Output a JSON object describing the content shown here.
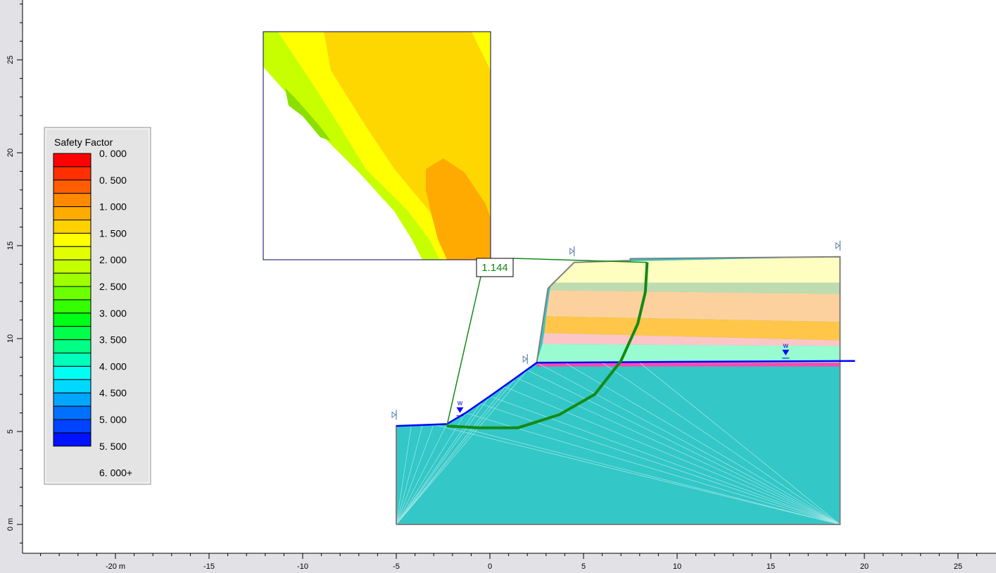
{
  "legend": {
    "title": "Safety Factor",
    "colors": [
      "#ff0000",
      "#ff3000",
      "#ff5e00",
      "#ff8a00",
      "#ffab00",
      "#ffd100",
      "#ffff00",
      "#e2ff00",
      "#c4ff00",
      "#9eff00",
      "#6cff00",
      "#34ff00",
      "#00ff16",
      "#00ff4a",
      "#00ff82",
      "#00ffba",
      "#00fff2",
      "#00d8ff",
      "#00a6ff",
      "#0071ff",
      "#0043ff",
      "#0012ff"
    ],
    "labels": [
      "0. 000",
      "0. 500",
      "1. 000",
      "1. 500",
      "2. 000",
      "2. 500",
      "3. 000",
      "3. 500",
      "4. 000",
      "4. 500",
      "5. 000",
      "5. 500",
      "6. 000+"
    ]
  },
  "axes": {
    "x_ticks": [
      {
        "v": -20,
        "label": "-20 m"
      },
      {
        "v": -15,
        "label": "-15"
      },
      {
        "v": -10,
        "label": "-10"
      },
      {
        "v": -5,
        "label": "-5"
      },
      {
        "v": 0,
        "label": "0"
      },
      {
        "v": 5,
        "label": "5"
      },
      {
        "v": 10,
        "label": "10"
      },
      {
        "v": 15,
        "label": "15"
      },
      {
        "v": 20,
        "label": "20"
      },
      {
        "v": 25,
        "label": "25"
      }
    ],
    "y_ticks": [
      {
        "v": 0,
        "label": "0 m"
      },
      {
        "v": 5,
        "label": "5"
      },
      {
        "v": 10,
        "label": "10"
      },
      {
        "v": 15,
        "label": "15"
      },
      {
        "v": 20,
        "label": "20"
      },
      {
        "v": 25,
        "label": "25"
      }
    ]
  },
  "result": {
    "min_factor_of_safety": "1.144",
    "slip_center": [
      -12.0,
      14.2
    ],
    "slip_entry": [
      8.4,
      14.1
    ],
    "slip_exit": [
      -2.3,
      5.3
    ],
    "slip_circle_points": [
      [
        8.4,
        14.1
      ],
      [
        8.3,
        12.5
      ],
      [
        7.9,
        10.8
      ],
      [
        7.0,
        8.8
      ],
      [
        5.6,
        7.0
      ],
      [
        3.7,
        5.9
      ],
      [
        1.5,
        5.2
      ],
      [
        -0.6,
        5.2
      ],
      [
        -2.3,
        5.3
      ]
    ]
  },
  "model": {
    "slope_outline": [
      [
        -5,
        0
      ],
      [
        -5,
        5.3
      ],
      [
        -3.6,
        5.35
      ],
      [
        -2.3,
        5.4
      ],
      [
        -1.3,
        6.0
      ],
      [
        0,
        6.9
      ],
      [
        1.4,
        7.9
      ],
      [
        2.5,
        8.7
      ],
      [
        3.1,
        12.7
      ],
      [
        4.5,
        14.1
      ],
      [
        7.5,
        14.2
      ],
      [
        7.5,
        14.3
      ],
      [
        18.7,
        14.4
      ],
      [
        18.7,
        0
      ],
      [
        -5,
        0
      ]
    ],
    "layers": [
      {
        "color": "#fefec0",
        "top_left": [
          4.5,
          14.1
        ],
        "top_right": [
          18.7,
          14.4
        ],
        "bottom_right": [
          18.7,
          13.0
        ],
        "bottom_left": [
          3.3,
          13.0
        ]
      },
      {
        "color": "#bfdcb1",
        "top_left": [
          3.3,
          13.0
        ],
        "top_right": [
          18.7,
          13.0
        ],
        "bottom_right": [
          18.7,
          12.4
        ],
        "bottom_left": [
          3.2,
          12.6
        ]
      },
      {
        "color": "#fdd19e",
        "top_left": [
          3.2,
          12.6
        ],
        "top_right": [
          18.7,
          12.4
        ],
        "bottom_right": [
          18.7,
          10.9
        ],
        "bottom_left": [
          3.0,
          11.2
        ]
      },
      {
        "color": "#ffc649",
        "top_left": [
          3.0,
          11.2
        ],
        "top_right": [
          18.7,
          10.9
        ],
        "bottom_right": [
          18.7,
          9.9
        ],
        "bottom_left": [
          2.9,
          10.3
        ]
      },
      {
        "color": "#fdc6c6",
        "top_left": [
          2.9,
          10.3
        ],
        "top_right": [
          18.7,
          9.9
        ],
        "bottom_right": [
          18.7,
          9.6
        ],
        "bottom_left": [
          2.8,
          9.7
        ]
      },
      {
        "color": "#98fcd0",
        "top_left": [
          2.8,
          9.7
        ],
        "top_right": [
          18.7,
          9.6
        ],
        "bottom_right": [
          18.7,
          8.7
        ],
        "bottom_left": [
          2.5,
          8.7
        ]
      },
      {
        "color": "#ff49b0",
        "top_left": [
          2.5,
          8.7
        ],
        "top_right": [
          18.7,
          8.7
        ],
        "bottom_right": [
          18.7,
          8.5
        ],
        "bottom_left": [
          2.5,
          8.5
        ]
      }
    ],
    "foundation_color": "#33c7c7",
    "water_table": [
      [
        -5,
        5.3
      ],
      [
        -3.6,
        5.35
      ],
      [
        -2.3,
        5.4
      ],
      [
        -1.3,
        6.0
      ],
      [
        0,
        6.9
      ],
      [
        1.4,
        7.9
      ],
      [
        2.5,
        8.7
      ],
      [
        10,
        8.75
      ],
      [
        19.5,
        8.8
      ]
    ],
    "water_markers": [
      {
        "pos": [
          -1.6,
          6.3
        ],
        "label": "w"
      },
      {
        "pos": [
          15.8,
          9.4
        ],
        "label": "w"
      }
    ],
    "boundary_markers": [
      [
        -5,
        5.9
      ],
      [
        2,
        8.9
      ],
      [
        4.5,
        14.7
      ],
      [
        18.7,
        15.0
      ]
    ],
    "mesh_fan_origins": [
      [
        -5,
        0
      ],
      [
        18.7,
        0
      ]
    ]
  },
  "contour_window": {
    "colors": {
      "white": "#ffffff",
      "light_green": "#c8ff00",
      "green": "#8ae000",
      "yellow_green": "#e0ff00",
      "yellow": "#ffff00",
      "gold": "#ffd700",
      "orange": "#ffaa00"
    }
  }
}
